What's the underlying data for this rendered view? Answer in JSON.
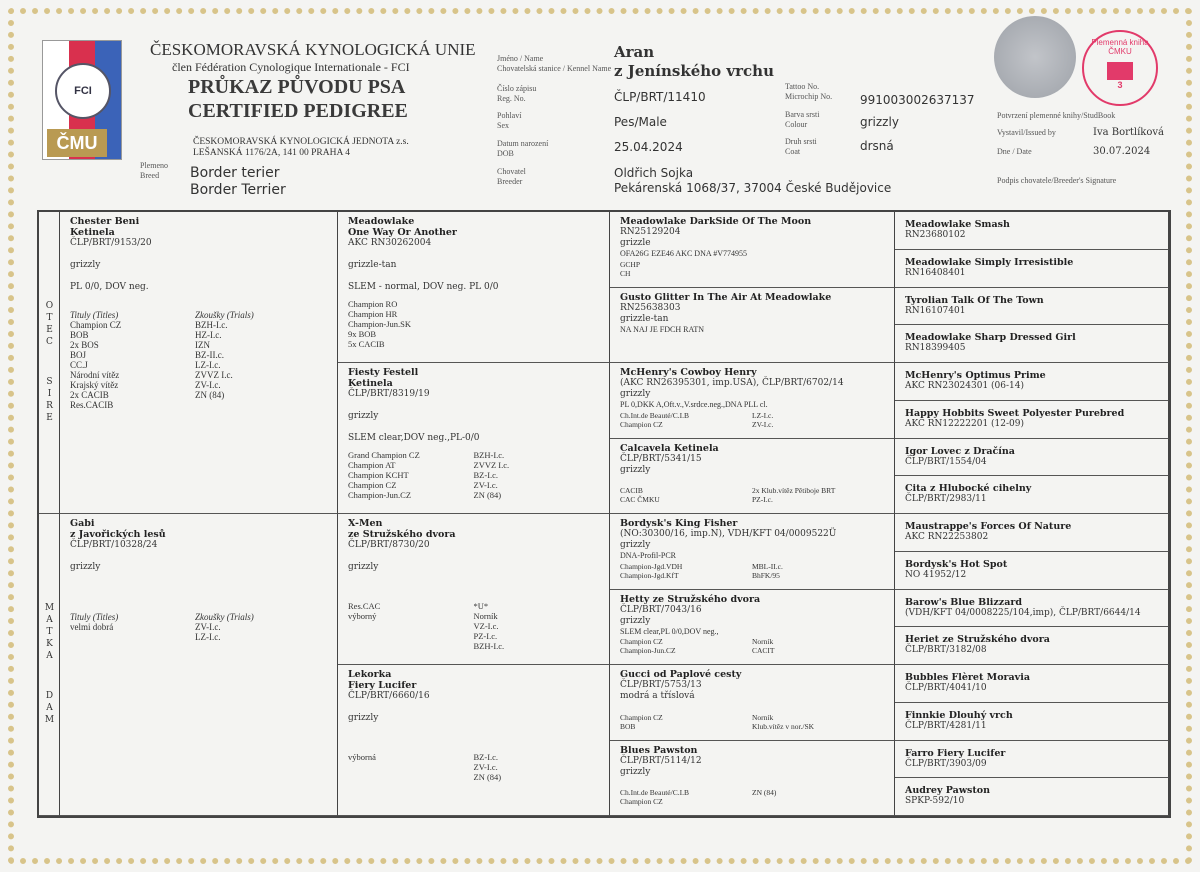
{
  "header": {
    "org_name": "ČESKOMORAVSKÁ KYNOLOGICKÁ UNIE",
    "org_member": "člen Fédération Cynologique Internationale - FCI",
    "title_cz": "PRŮKAZ PŮVODU PSA",
    "title_en": "CERTIFIED PEDIGREE",
    "issuer_name": "ČESKOMORAVSKÁ KYNOLOGICKÁ JEDNOTA z.s.",
    "issuer_address": "LEŠANSKÁ 1176/2A, 141 00 PRAHA 4",
    "logo_fci": "FCI",
    "logo_cmu": "ČMU",
    "breed_label": [
      "Plemeno",
      "Breed"
    ],
    "breed": [
      "Border terier",
      "Border Terrier"
    ]
  },
  "dog": {
    "labels": {
      "name": [
        "Jméno / Name",
        "Chovatelská stanice / Kennel Name"
      ],
      "reg": [
        "Číslo zápisu",
        "Reg. No."
      ],
      "sex": [
        "Pohlaví",
        "Sex"
      ],
      "dob": [
        "Datum narození",
        "DOB"
      ],
      "breeder": [
        "Chovatel",
        "Breeder"
      ],
      "chip": [
        "Tattoo No.",
        "Microchip No."
      ],
      "colour": [
        "Barva srsti",
        "Colour"
      ],
      "coat": [
        "Druh srsti",
        "Coat"
      ]
    },
    "name": "Aran",
    "kennel": "z Jenínského vrchu",
    "reg_no": "ČLP/BRT/11410",
    "sex": "Pes/Male",
    "dob": "25.04.2024",
    "microchip": "991003002637137",
    "colour": "grizzly",
    "coat": "drsná",
    "breeder_name": "Oldřich Sojka",
    "breeder_address": "Pekárenská 1068/37, 37004 České Budějovice"
  },
  "studbook": {
    "confirm_label": "Potvrzení plemenné knihy/StudBook",
    "issued_by_label": "Vystavil/Issued by",
    "issued_by": "Iva Bortlíková",
    "date_label": "Dne / Date",
    "date": "30.07.2024",
    "signature_label": "Podpis chovatele/Breeder's Signature",
    "stamp_text": "Plemenná kniha ČMKU",
    "stamp_number": "3",
    "stamp_color": "#e23a6a"
  },
  "side_labels": {
    "sire": [
      "OTEC",
      "SIRE"
    ],
    "dam": [
      "MATKA",
      "DAM"
    ]
  },
  "titles_header": "Tituly (Titles)",
  "trials_header": "Zkoušky (Trials)",
  "gen1": [
    {
      "name": [
        "Chester Beni",
        "Ketinela"
      ],
      "reg": "ČLP/BRT/9153/20",
      "color": "grizzly",
      "health": "PL 0/0, DOV neg.",
      "titles": [
        "Champion CZ",
        "BOB",
        "2x BOS",
        "BOJ",
        "CC.J",
        "Národní vítěz",
        "Krajský vítěz",
        "2x CACIB",
        "Res.CACIB"
      ],
      "trials": [
        "BZH-I.c.",
        "HZ-I.c.",
        "IZN",
        "BZ-II.c.",
        "LZ-I.c.",
        "ZVVZ I.c.",
        "ZV-I.c.",
        "ZN (84)"
      ]
    },
    {
      "name": [
        "Gabi",
        "z Javořických lesů"
      ],
      "reg": "ČLP/BRT/10328/24",
      "color": "grizzly",
      "health": "",
      "titles": [
        "velmi dobrá"
      ],
      "trials": [
        "ZV-I.c.",
        "LZ-I.c."
      ]
    }
  ],
  "gen2": [
    {
      "name": [
        "Meadowlake",
        "One Way Or Another"
      ],
      "reg": "AKC RN30262004",
      "color": "grizzle-tan",
      "health": "SLEM - normal, DOV neg. PL 0/0",
      "titles": [
        "Champion RO",
        "Champion HR",
        "Champion-Jun.SK",
        "9x BOB",
        "5x CACIB"
      ],
      "trials": []
    },
    {
      "name": [
        "Fiesty Festell",
        "Ketinela"
      ],
      "reg": "ČLP/BRT/8319/19",
      "color": "grizzly",
      "health": "SLEM clear,DOV neg.,PL-0/0",
      "titles": [
        "Grand Champion CZ",
        "Champion AT",
        "Champion KCHT",
        "Champion CZ",
        "Champion-Jun.CZ"
      ],
      "trials": [
        "BZH-I.c.",
        "ZVVZ I.c.",
        "BZ-I.c.",
        "ZV-I.c.",
        "ZN (84)"
      ]
    },
    {
      "name": [
        "X-Men",
        "ze Stružského dvora"
      ],
      "reg": "ČLP/BRT/8730/20",
      "color": "grizzly",
      "health": "",
      "titles": [
        "Res.CAC",
        "výborný"
      ],
      "trials": [
        "*U*",
        "Norník",
        "VZ-I.c.",
        "PZ-I.c.",
        "BZH-I.c."
      ]
    },
    {
      "name": [
        "Lekorka",
        "Fiery Lucifer"
      ],
      "reg": "ČLP/BRT/6660/16",
      "color": "grizzly",
      "health": "",
      "titles": [
        "výborná"
      ],
      "trials": [
        "BZ-I.c.",
        "ZV-I.c.",
        "ZN (84)"
      ]
    }
  ],
  "gen3": [
    {
      "name": "Meadowlake DarkSide Of The Moon",
      "reg": "RN25129204",
      "color": "grizzle",
      "health": "OFA26G EZE46 AKC DNA #V774955",
      "titles": [
        "GCHP",
        "CH"
      ],
      "trials": []
    },
    {
      "name": "Gusto Glitter In The Air At Meadowlake",
      "reg": "RN25638303",
      "color": "grizzle-tan",
      "health": "NA NAJ JE FDCH RATN",
      "titles": [],
      "trials": []
    },
    {
      "name": "McHenry's Cowboy Henry",
      "reg": "(AKC RN26395301, imp.USA), ČLP/BRT/6702/14",
      "color": "grizzly",
      "health": "PL 0,DKK A,Oft.v.,V.srdce.neg.,DNA PLL cl.",
      "titles": [
        "Ch.Int.de Beauté/C.I.B",
        "Champion CZ"
      ],
      "trials": [
        "LZ-I.c.",
        "ZV-I.c."
      ]
    },
    {
      "name": "Calcavela Ketinela",
      "reg": "ČLP/BRT/5341/15",
      "color": "grizzly",
      "health": "",
      "titles": [
        "CACIB",
        "CAC ČMKU"
      ],
      "trials": [
        "2x Klub.vítěz Pětiboje BRT",
        "PZ-I.c."
      ]
    },
    {
      "name": "Bordysk's King Fisher",
      "reg": "(NO:30300/16, imp.N), VDH/KFT 04/0009522Ü",
      "color": "grizzly",
      "health": "DNA-Profil-PCR",
      "titles": [
        "Champion-Jgd.VDH",
        "Champion-Jgd.KfT"
      ],
      "trials": [
        "MBL-II.c.",
        "BhFK/95"
      ]
    },
    {
      "name": "Hetty ze Stružského dvora",
      "reg": "ČLP/BRT/7043/16",
      "color": "grizzly",
      "health": "SLEM clear,PL 0/0,DOV neg.,",
      "titles": [
        "Champion CZ",
        "Champion-Jun.CZ"
      ],
      "trials": [
        "Norník",
        "CACIT"
      ]
    },
    {
      "name": "Gucci od Paplové cesty",
      "reg": "ČLP/BRT/5753/13",
      "color": "modrá a tříslová",
      "health": "",
      "titles": [
        "Champion CZ",
        "BOB"
      ],
      "trials": [
        "Norník",
        "Klub.vítěz v nor./SK"
      ]
    },
    {
      "name": "Blues Pawston",
      "reg": "ČLP/BRT/5114/12",
      "color": "grizzly",
      "health": "",
      "titles": [
        "Ch.Int.de Beauté/C.I.B",
        "Champion CZ"
      ],
      "trials": [
        "ZN (84)"
      ]
    }
  ],
  "gen4": [
    {
      "name": "Meadowlake Smash",
      "reg": "RN23680102"
    },
    {
      "name": "Meadowlake Simply Irresistible",
      "reg": "RN16408401"
    },
    {
      "name": "Tyrolian Talk Of The Town",
      "reg": "RN16107401"
    },
    {
      "name": "Meadowlake Sharp Dressed Girl",
      "reg": "RN18399405"
    },
    {
      "name": "McHenry's Optimus Prime",
      "reg": "AKC RN23024301 (06-14)"
    },
    {
      "name": "Happy Hobbits Sweet Polyester Purebred",
      "reg": "AKC RN12222201 (12-09)"
    },
    {
      "name": "Igor Lovec z Dračína",
      "reg": "ČLP/BRT/1554/04"
    },
    {
      "name": "Cita z Hlubocké cihelny",
      "reg": "ČLP/BRT/2983/11"
    },
    {
      "name": "Maustrappe's Forces Of Nature",
      "reg": "AKC RN22253802"
    },
    {
      "name": "Bordysk's Hot Spot",
      "reg": "NO 41952/12"
    },
    {
      "name": "Barow's Blue Blizzard",
      "reg": "(VDH/KFT 04/0008225/104,imp), ČLP/BRT/6644/14"
    },
    {
      "name": "Heriet ze Stružského dvora",
      "reg": "ČLP/BRT/3182/08"
    },
    {
      "name": "Bubbles Flèret Moravia",
      "reg": "ČLP/BRT/4041/10"
    },
    {
      "name": "Finnkie Dlouhý vrch",
      "reg": "ČLP/BRT/4281/11"
    },
    {
      "name": "Farro Fiery Lucifer",
      "reg": "ČLP/BRT/3903/09"
    },
    {
      "name": "Audrey Pawston",
      "reg": "SPKP-592/10"
    }
  ]
}
